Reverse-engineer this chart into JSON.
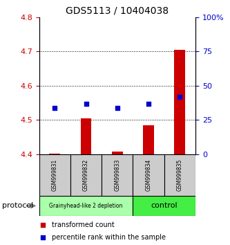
{
  "title": "GDS5113 / 10404038",
  "samples": [
    "GSM999831",
    "GSM999832",
    "GSM999833",
    "GSM999834",
    "GSM999835"
  ],
  "transformed_count": [
    4.403,
    4.505,
    4.408,
    4.485,
    4.705
  ],
  "percentile_rank": [
    34,
    37,
    34,
    37,
    42
  ],
  "ylim_left": [
    4.4,
    4.8
  ],
  "ylim_right": [
    0,
    100
  ],
  "yticks_left": [
    4.4,
    4.5,
    4.6,
    4.7,
    4.8
  ],
  "yticks_right": [
    0,
    25,
    50,
    75,
    100
  ],
  "bar_color": "#cc0000",
  "scatter_color": "#0000cc",
  "bar_bottom": 4.4,
  "groups": [
    {
      "label": "Grainyhead-like 2 depletion",
      "n_samples": 3,
      "color": "#aaffaa"
    },
    {
      "label": "control",
      "n_samples": 2,
      "color": "#44ee44"
    }
  ],
  "group_label": "protocol",
  "bg_color": "#ffffff",
  "left_tick_color": "#cc0000",
  "right_tick_color": "#0000cc",
  "sample_box_color": "#cccccc",
  "gridline_ticks": [
    4.5,
    4.6,
    4.7
  ]
}
